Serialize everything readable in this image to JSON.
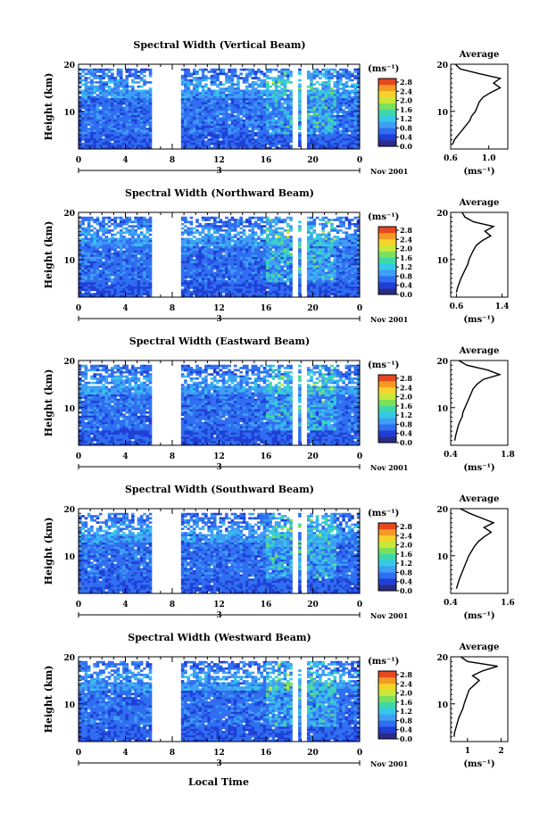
{
  "chart_data": [
    {
      "type": "heatmap",
      "title": "Spectral Width (Vertical Beam)",
      "ylabel": "Height (km)",
      "ylim": [
        2,
        20
      ],
      "yticks": [
        "10",
        "20"
      ],
      "xlim": [
        0,
        24
      ],
      "xticks": [
        "0",
        "4",
        "8",
        "12",
        "16",
        "20",
        "0"
      ],
      "date_label": "3",
      "date_suffix": "Nov 2001",
      "data_gaps": [
        [
          6.3,
          8.8
        ],
        [
          18.2,
          18.7
        ],
        [
          19.1,
          19.5
        ]
      ],
      "colorbar": {
        "unit": "(ms⁻¹)",
        "ticks": [
          "2.8",
          "2.4",
          "2.0",
          "1.6",
          "1.2",
          "0.8",
          "0.4",
          "0.0"
        ]
      },
      "average_profile": {
        "title": "Average",
        "xlabel": "(ms⁻¹)",
        "xticks": [
          "0.6",
          "1.0"
        ],
        "xlim": [
          0.6,
          1.2
        ],
        "heights": [
          3,
          4,
          5,
          6,
          7,
          8,
          9,
          10,
          11,
          12,
          13,
          14,
          15,
          16,
          17,
          18,
          19,
          20
        ],
        "values": [
          0.62,
          0.64,
          0.68,
          0.72,
          0.76,
          0.8,
          0.82,
          0.86,
          0.88,
          0.9,
          0.94,
          1.02,
          1.12,
          1.05,
          1.12,
          0.9,
          0.7,
          0.65
        ]
      }
    },
    {
      "type": "heatmap",
      "title": "Spectral Width (Northward Beam)",
      "ylabel": "Height (km)",
      "ylim": [
        2,
        20
      ],
      "yticks": [
        "10",
        "20"
      ],
      "xlim": [
        0,
        24
      ],
      "xticks": [
        "0",
        "4",
        "8",
        "12",
        "16",
        "20",
        "0"
      ],
      "date_label": "3",
      "date_suffix": "Nov 2001",
      "data_gaps": [
        [
          6.3,
          8.8
        ],
        [
          18.2,
          18.7
        ],
        [
          19.1,
          19.5
        ]
      ],
      "colorbar": {
        "unit": "(ms⁻¹)",
        "ticks": [
          "2.8",
          "2.4",
          "2.0",
          "1.6",
          "1.2",
          "0.8",
          "0.4",
          "0.0"
        ]
      },
      "average_profile": {
        "title": "Average",
        "xlabel": "(ms⁻¹)",
        "xticks": [
          "0.6",
          "1.4"
        ],
        "xlim": [
          0.5,
          1.5
        ],
        "heights": [
          3,
          4,
          5,
          6,
          7,
          8,
          9,
          10,
          11,
          12,
          13,
          14,
          15,
          16,
          17,
          18,
          19,
          20
        ],
        "values": [
          0.6,
          0.62,
          0.65,
          0.68,
          0.72,
          0.76,
          0.8,
          0.82,
          0.86,
          0.9,
          0.95,
          1.05,
          1.2,
          1.1,
          1.25,
          0.9,
          0.75,
          0.7
        ]
      }
    },
    {
      "type": "heatmap",
      "title": "Spectral Width (Eastward Beam)",
      "ylabel": "Height (km)",
      "ylim": [
        2,
        20
      ],
      "yticks": [
        "10",
        "20"
      ],
      "xlim": [
        0,
        24
      ],
      "xticks": [
        "0",
        "4",
        "8",
        "12",
        "16",
        "20",
        "0"
      ],
      "date_label": "3",
      "date_suffix": "Nov 2001",
      "data_gaps": [
        [
          6.3,
          8.8
        ],
        [
          18.2,
          18.7
        ],
        [
          19.1,
          19.5
        ]
      ],
      "colorbar": {
        "unit": "(ms⁻¹)",
        "ticks": [
          "2.8",
          "2.4",
          "2.0",
          "1.6",
          "1.2",
          "0.8",
          "0.4",
          "0.0"
        ]
      },
      "average_profile": {
        "title": "Average",
        "xlabel": "(ms⁻¹)",
        "xticks": [
          "0.4",
          "1.8"
        ],
        "xlim": [
          0.4,
          1.8
        ],
        "heights": [
          3,
          4,
          5,
          6,
          7,
          8,
          9,
          10,
          11,
          12,
          13,
          14,
          15,
          16,
          17,
          18,
          19,
          20
        ],
        "values": [
          0.5,
          0.52,
          0.55,
          0.58,
          0.62,
          0.68,
          0.7,
          0.75,
          0.8,
          0.85,
          0.9,
          0.95,
          1.05,
          1.2,
          1.6,
          1.3,
          0.8,
          0.6
        ]
      }
    },
    {
      "type": "heatmap",
      "title": "Spectral Width (Southward Beam)",
      "ylabel": "Height (km)",
      "ylim": [
        2,
        20
      ],
      "yticks": [
        "10",
        "20"
      ],
      "xlim": [
        0,
        24
      ],
      "xticks": [
        "0",
        "4",
        "8",
        "12",
        "16",
        "20",
        "0"
      ],
      "date_label": "3",
      "date_suffix": "Nov 2001",
      "data_gaps": [
        [
          6.3,
          8.8
        ],
        [
          18.2,
          18.7
        ],
        [
          19.1,
          19.5
        ]
      ],
      "colorbar": {
        "unit": "(ms⁻¹)",
        "ticks": [
          "2.8",
          "2.4",
          "2.0",
          "1.6",
          "1.2",
          "0.8",
          "0.4",
          "0.0"
        ]
      },
      "average_profile": {
        "title": "Average",
        "xlabel": "(ms⁻¹)",
        "xticks": [
          "0.4",
          "1.6"
        ],
        "xlim": [
          0.4,
          1.6
        ],
        "heights": [
          3,
          4,
          5,
          6,
          7,
          8,
          9,
          10,
          11,
          12,
          13,
          14,
          15,
          16,
          17,
          18,
          19,
          20
        ],
        "values": [
          0.52,
          0.55,
          0.58,
          0.62,
          0.66,
          0.7,
          0.74,
          0.78,
          0.84,
          0.9,
          0.98,
          1.1,
          1.25,
          1.1,
          1.3,
          1.05,
          0.8,
          0.6
        ]
      }
    },
    {
      "type": "heatmap",
      "title": "Spectral Width (Westward Beam)",
      "ylabel": "Height (km)",
      "ylim": [
        2,
        20
      ],
      "yticks": [
        "10",
        "20"
      ],
      "xlim": [
        0,
        24
      ],
      "xticks": [
        "0",
        "4",
        "8",
        "12",
        "16",
        "20",
        "0"
      ],
      "date_label": "3",
      "date_suffix": "Nov 2001",
      "data_gaps": [
        [
          6.3,
          8.8
        ],
        [
          18.2,
          18.7
        ],
        [
          19.1,
          19.5
        ]
      ],
      "colorbar": {
        "unit": "(ms⁻¹)",
        "ticks": [
          "2.8",
          "2.4",
          "2.0",
          "1.6",
          "1.2",
          "0.8",
          "0.4",
          "0.0"
        ]
      },
      "average_profile": {
        "title": "Average",
        "xlabel": "(ms⁻¹)",
        "xticks": [
          "1",
          "2"
        ],
        "xlim": [
          0.5,
          2.2
        ],
        "heights": [
          3,
          4,
          5,
          6,
          7,
          8,
          9,
          10,
          11,
          12,
          13,
          14,
          15,
          16,
          17,
          18,
          19,
          20
        ],
        "values": [
          0.6,
          0.62,
          0.66,
          0.7,
          0.74,
          0.8,
          0.86,
          0.9,
          0.95,
          1.0,
          1.05,
          1.2,
          1.35,
          1.15,
          1.45,
          1.9,
          1.0,
          0.8
        ]
      }
    }
  ],
  "shared_xlabel": "Local Time",
  "colors": [
    "#2b2b8a",
    "#1f3fd6",
    "#2f6ef0",
    "#3f9ef5",
    "#35c8e8",
    "#3fd7a8",
    "#7be05a",
    "#c9e83a",
    "#f5d42a",
    "#f59a22",
    "#e8481e"
  ]
}
